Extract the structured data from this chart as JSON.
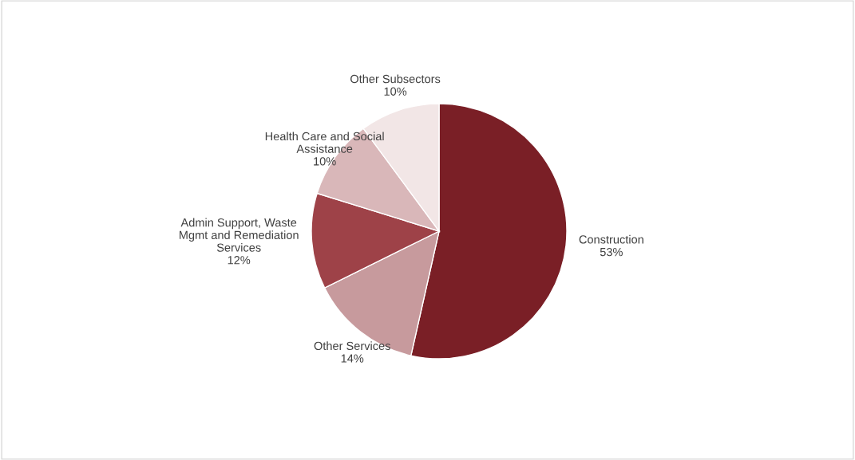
{
  "chart_data": {
    "type": "pie",
    "categories": [
      "Construction",
      "Other Services",
      "Admin Support, Waste Mgmt and Remediation Services",
      "Health Care and Social Assistance",
      "Other Subsectors"
    ],
    "values": [
      53,
      14,
      12,
      10,
      10
    ],
    "value_labels": [
      "53%",
      "14%",
      "12%",
      "10%",
      "10%"
    ],
    "colors": [
      "#7a1f26",
      "#c79a9d",
      "#9e4248",
      "#d9b7b9",
      "#f2e6e6"
    ],
    "legend": false
  }
}
